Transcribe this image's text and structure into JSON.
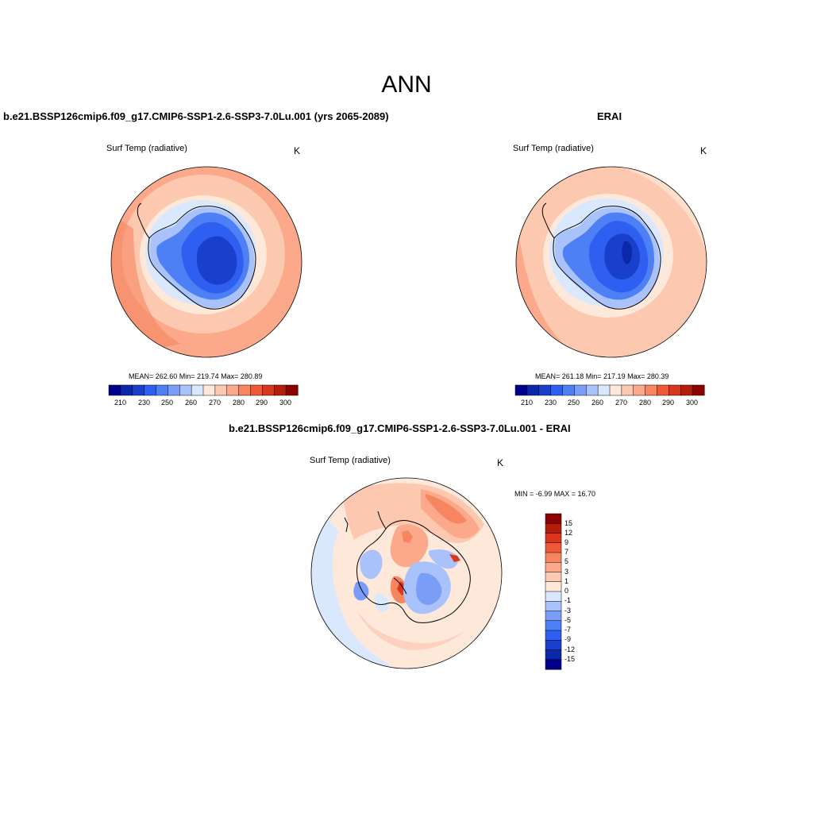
{
  "figure": {
    "title": "ANN",
    "variable_name": "Surf Temp (radiative)",
    "units": "K"
  },
  "panels": {
    "test": {
      "title": "b.e21.BSSP126cmip6.f09_g17.CMIP6-SSP1-2.6-SSP3-7.0Lu.001 (yrs 2065-2089)",
      "stats": "MEAN= 262.60  Min= 219.74  Max= 280.89"
    },
    "reference": {
      "title": "ERAI",
      "stats": "MEAN= 261.18  Min= 217.19  Max= 280.39"
    },
    "difference": {
      "title": "b.e21.BSSP126cmip6.f09_g17.CMIP6-SSP1-2.6-SSP3-7.0Lu.001 - ERAI",
      "stats": "MIN =  -6.99 MAX =  16.70"
    }
  },
  "colorbars": {
    "absolute": {
      "tick_labels": [
        "210",
        "230",
        "250",
        "260",
        "270",
        "280",
        "290",
        "300"
      ],
      "colors": [
        "#00008b",
        "#0a28a8",
        "#1a3fcc",
        "#2e5ff0",
        "#4d7ff5",
        "#7a9ef8",
        "#a9c2fb",
        "#d9e8fc",
        "#fde8d9",
        "#fcc8b0",
        "#fba98a",
        "#f68560",
        "#ee5a35",
        "#d9361a",
        "#b41c0c",
        "#8b0000"
      ]
    },
    "difference": {
      "labels": [
        "15",
        "12",
        "9",
        "7",
        "5",
        "3",
        "1",
        "0",
        "-1",
        "-3",
        "-5",
        "-7",
        "-9",
        "-12",
        "-15"
      ],
      "colors": [
        "#8b0000",
        "#b41c0c",
        "#d9361a",
        "#ee5a35",
        "#f68560",
        "#fba98a",
        "#fcc8b0",
        "#fde8d9",
        "#d9e8fc",
        "#a9c2fb",
        "#7a9ef8",
        "#4d7ff5",
        "#2e5ff0",
        "#1a3fcc",
        "#0a28a8",
        "#00008b"
      ]
    }
  }
}
